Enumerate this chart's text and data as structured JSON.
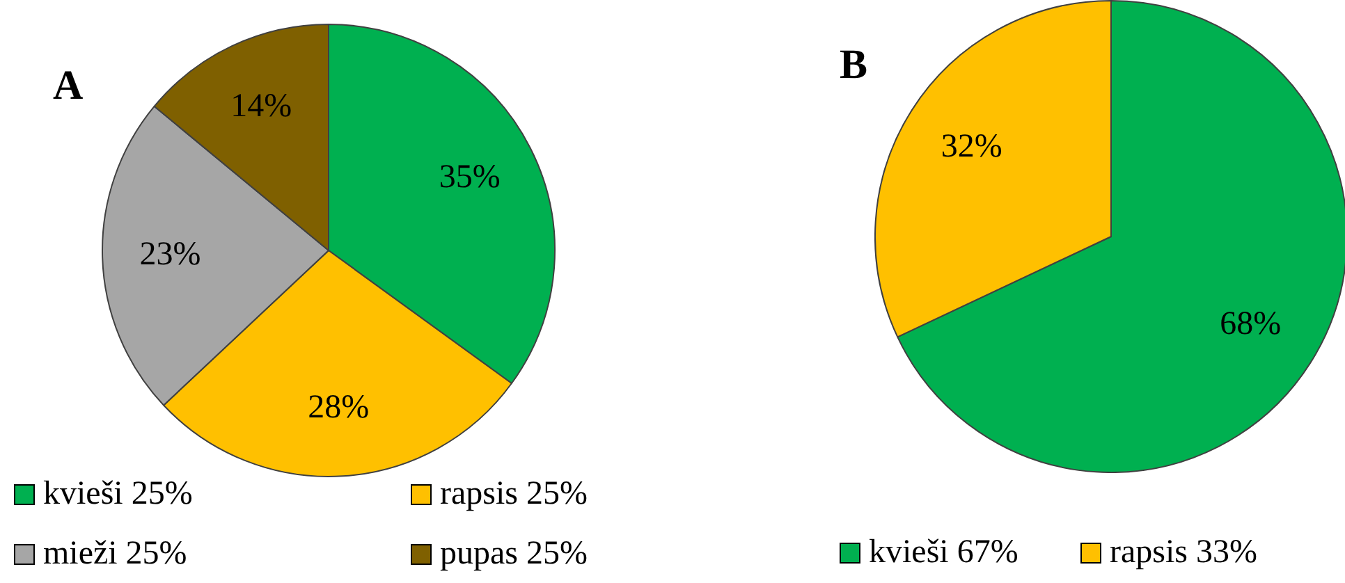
{
  "chart_data": [
    {
      "type": "pie",
      "title": "A",
      "categories": [
        "kvieši 25%",
        "rapsis 25%",
        "mieži 25%",
        "pupas 25%"
      ],
      "values": [
        35,
        28,
        23,
        14
      ],
      "colors": [
        "#00b050",
        "#ffc000",
        "#a6a6a6",
        "#7f6000"
      ],
      "value_labels": [
        "35%",
        "28%",
        "23%",
        "14%"
      ],
      "legend": "bottom"
    },
    {
      "type": "pie",
      "title": "B",
      "categories": [
        "kvieši 67%",
        "rapsis 33%"
      ],
      "values": [
        68,
        32
      ],
      "colors": [
        "#00b050",
        "#ffc000"
      ],
      "value_labels": [
        "68%",
        "32%"
      ],
      "legend": "bottom"
    }
  ]
}
